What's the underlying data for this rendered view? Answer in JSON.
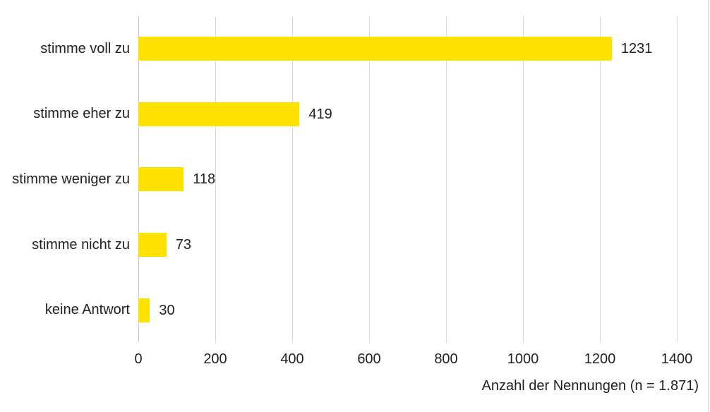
{
  "chart_data": {
    "type": "bar",
    "orientation": "horizontal",
    "categories": [
      "stimme voll zu",
      "stimme eher zu",
      "stimme weniger zu",
      "stimme nicht zu",
      "keine Antwort"
    ],
    "values": [
      1231,
      419,
      118,
      73,
      30
    ],
    "data_labels": [
      "1231",
      "419",
      "118",
      "73",
      "30"
    ],
    "title": "",
    "xlabel": "Anzahl der Nennungen (n = 1.871)",
    "ylabel": "",
    "xlim": [
      0,
      1400
    ],
    "xticks": [
      0,
      200,
      400,
      600,
      800,
      1000,
      1200,
      1400
    ],
    "xtick_labels": [
      "0",
      "200",
      "400",
      "600",
      "800",
      "1000",
      "1200",
      "1400"
    ],
    "grid": true,
    "legend": false,
    "colors": {
      "bar": "#FFE100",
      "gridline": "#D9D9D9",
      "zero_axis_line": "#C6C6C6",
      "text": "#212121",
      "background": "#FFFFFF",
      "frame_edge": "#E2E2E2"
    }
  }
}
